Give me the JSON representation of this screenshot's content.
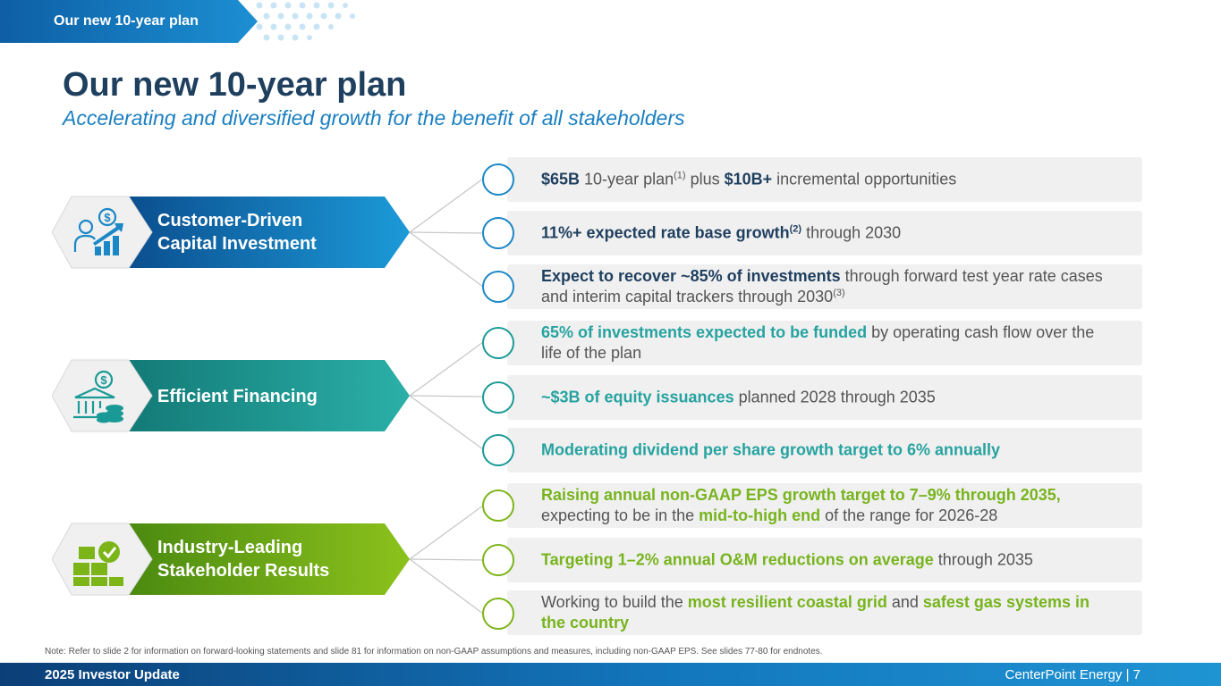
{
  "section_tag": "Our new 10-year plan",
  "title": "Our new 10-year plan",
  "subtitle": "Accelerating and diversified growth for the benefit of all stakeholders",
  "colors": {
    "blue": "#1a87c6",
    "teal": "#1a9a96",
    "green": "#7cb518",
    "navy": "#1f3f5f"
  },
  "pillars": [
    {
      "line1": "Customer-Driven",
      "line2": "Capital Investment",
      "icon": "person-dollar-growth-icon"
    },
    {
      "line1": "Efficient Financing",
      "line2": "",
      "icon": "bank-coins-icon"
    },
    {
      "line1": "Industry-Leading",
      "line2": "Stakeholder Results",
      "icon": "boxes-checkmark-icon"
    }
  ],
  "rows": [
    {
      "b1": "$65B",
      "t1": " 10-year plan",
      "sup1": "(1)",
      "t2": " plus ",
      "b2": "$10B+",
      "t3": " incremental opportunities"
    },
    {
      "b1": "11%+ expected rate base growth",
      "sup1": "(2)",
      "t1": " through 2030"
    },
    {
      "b1": "Expect to recover ~85% of investments",
      "t1": " through forward test year rate cases and interim capital trackers through 2030",
      "sup1": "(3)"
    },
    {
      "b1": "65% of investments expected to be funded",
      "t1": " by operating cash flow over the life of the plan"
    },
    {
      "b1": "~$3B of equity issuances",
      "t1": " planned 2028 through 2035"
    },
    {
      "b1": "Moderating dividend per share growth target to 6% annually"
    },
    {
      "b1": "Raising annual non-GAAP EPS growth target to 7–9% through 2035,",
      "t1": " expecting to be in the ",
      "b2": "mid-to-high end",
      "t2": " of the range for 2026-28"
    },
    {
      "b1": "Targeting 1–2% annual O&M reductions on average",
      "t1": " through 2035"
    },
    {
      "t1": "Working to build the ",
      "b1": "most resilient coastal grid",
      "t2": " and ",
      "b2": "safest gas systems in the country"
    }
  ],
  "note": "Note: Refer to slide 2 for information on forward-looking statements and slide 81 for information on non-GAAP assumptions and measures, including non-GAAP EPS. See slides 77-80 for endnotes.",
  "footer": {
    "left": "2025 Investor Update",
    "right": "CenterPoint Energy | 7"
  }
}
